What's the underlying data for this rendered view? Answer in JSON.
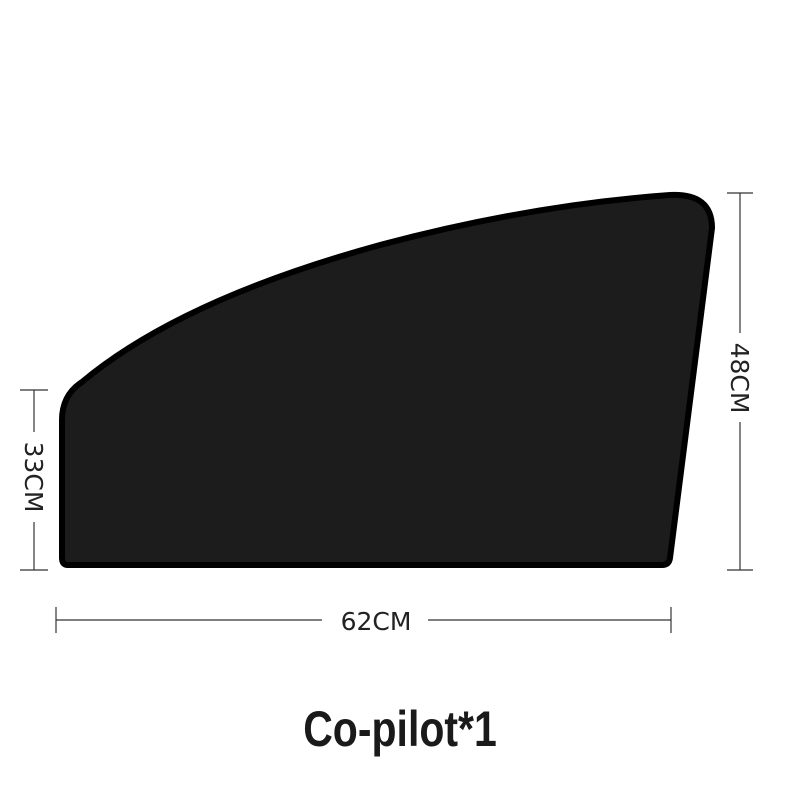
{
  "diagram": {
    "width_label": "62CM",
    "left_height_label": "33CM",
    "right_height_label": "48CM",
    "shade_fill_color": "#1c1c1c",
    "shade_border_color": "#000000"
  },
  "caption": "Co-pilot*1"
}
